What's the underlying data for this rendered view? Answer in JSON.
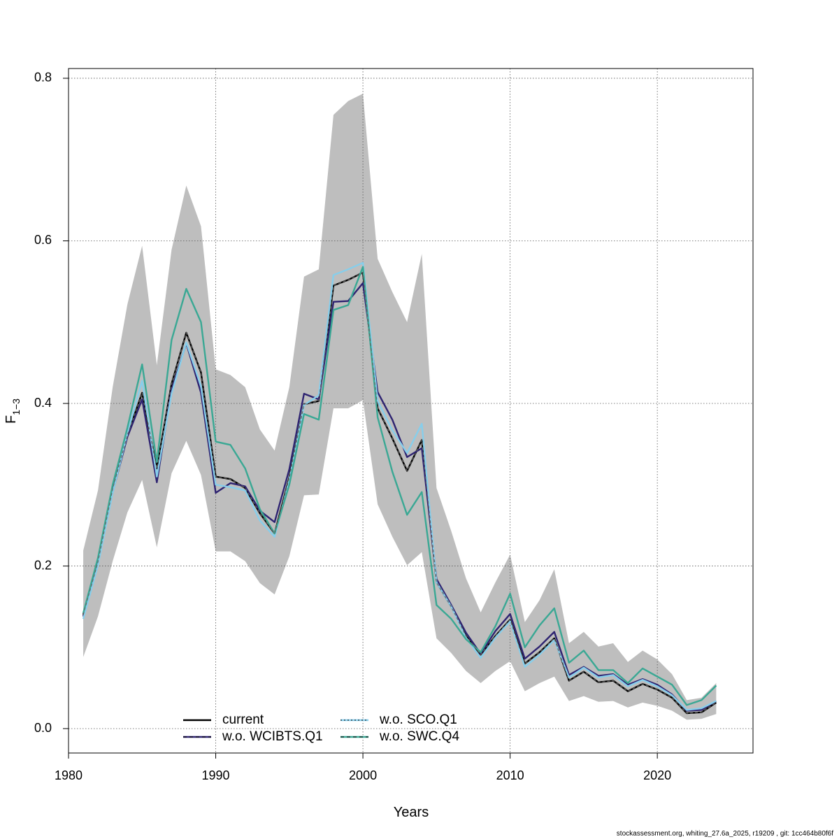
{
  "footer": "stockassessment.org, whiting_27.6a_2025, r19209 , git: 1cc464b80f6f",
  "chart_data": {
    "type": "line",
    "title": "",
    "xlabel": "Years",
    "ylabel": "F",
    "ylabel_subscript": "1−3",
    "xlim": [
      1980,
      2026.5
    ],
    "ylim": [
      -0.03,
      0.812
    ],
    "grid": true,
    "legend_position": "bottom-center",
    "x_ticks": [
      1980,
      1990,
      2000,
      2010,
      2020
    ],
    "x_tick_labels": [
      "1980",
      "1990",
      "2000",
      "2010",
      "2020"
    ],
    "y_ticks": [
      0.0,
      0.2,
      0.4,
      0.6,
      0.8
    ],
    "y_tick_labels": [
      "0.0",
      "0.2",
      "0.4",
      "0.6",
      "0.8"
    ],
    "x": [
      1981,
      1982,
      1983,
      1984,
      1985,
      1986,
      1987,
      1988,
      1989,
      1990,
      1991,
      1992,
      1993,
      1994,
      1995,
      1996,
      1997,
      1998,
      1999,
      2000,
      2001,
      2002,
      2003,
      2004,
      2005,
      2006,
      2007,
      2008,
      2009,
      2010,
      2011,
      2012,
      2013,
      2014,
      2015,
      2016,
      2017,
      2018,
      2019,
      2020,
      2021,
      2022,
      2023,
      2024
    ],
    "band": {
      "name": "confidence band",
      "color": "#bebebe",
      "upper": [
        0.219,
        0.293,
        0.42,
        0.522,
        0.594,
        0.447,
        0.589,
        0.668,
        0.618,
        0.442,
        0.435,
        0.42,
        0.368,
        0.342,
        0.42,
        0.556,
        0.565,
        0.755,
        0.772,
        0.781,
        0.578,
        0.537,
        0.5,
        0.584,
        0.296,
        0.243,
        0.185,
        0.143,
        0.18,
        0.214,
        0.131,
        0.158,
        0.196,
        0.105,
        0.119,
        0.101,
        0.105,
        0.082,
        0.096,
        0.085,
        0.067,
        0.035,
        0.038,
        0.056
      ],
      "lower": [
        0.088,
        0.138,
        0.206,
        0.266,
        0.306,
        0.223,
        0.314,
        0.354,
        0.312,
        0.218,
        0.218,
        0.206,
        0.179,
        0.165,
        0.212,
        0.287,
        0.288,
        0.394,
        0.394,
        0.404,
        0.276,
        0.236,
        0.201,
        0.217,
        0.111,
        0.093,
        0.071,
        0.056,
        0.071,
        0.083,
        0.046,
        0.056,
        0.064,
        0.034,
        0.04,
        0.033,
        0.034,
        0.026,
        0.032,
        0.028,
        0.022,
        0.011,
        0.012,
        0.018
      ]
    },
    "series": [
      {
        "name": "current",
        "color": "#000000",
        "dash": "solid",
        "values": [
          0.14,
          0.205,
          0.295,
          0.361,
          0.413,
          0.32,
          0.424,
          0.487,
          0.438,
          0.31,
          0.307,
          0.296,
          0.265,
          0.24,
          0.309,
          0.399,
          0.403,
          0.545,
          0.552,
          0.561,
          0.394,
          0.357,
          0.317,
          0.355,
          0.18,
          0.15,
          0.114,
          0.091,
          0.114,
          0.134,
          0.08,
          0.094,
          0.111,
          0.059,
          0.07,
          0.057,
          0.059,
          0.046,
          0.055,
          0.048,
          0.038,
          0.019,
          0.02,
          0.032
        ]
      },
      {
        "name": "w.o. WCIBTS.Q1",
        "color": "#2e2371",
        "dash": "dashed",
        "values": [
          0.138,
          0.203,
          0.291,
          0.359,
          0.405,
          0.303,
          0.417,
          0.474,
          0.413,
          0.29,
          0.302,
          0.298,
          0.268,
          0.254,
          0.319,
          0.412,
          0.405,
          0.525,
          0.526,
          0.548,
          0.414,
          0.38,
          0.334,
          0.345,
          0.184,
          0.152,
          0.118,
          0.092,
          0.12,
          0.141,
          0.086,
          0.101,
          0.119,
          0.066,
          0.076,
          0.065,
          0.067,
          0.054,
          0.061,
          0.054,
          0.042,
          0.022,
          0.023,
          0.034
        ]
      },
      {
        "name": "w.o. SCO.Q1",
        "color": "#87ceeb",
        "dash": "dotted",
        "values": [
          0.135,
          0.201,
          0.29,
          0.363,
          0.428,
          0.31,
          0.412,
          0.475,
          0.421,
          0.3,
          0.297,
          0.293,
          0.256,
          0.236,
          0.306,
          0.398,
          0.41,
          0.558,
          0.565,
          0.573,
          0.403,
          0.367,
          0.339,
          0.375,
          0.18,
          0.15,
          0.112,
          0.087,
          0.112,
          0.132,
          0.076,
          0.091,
          0.109,
          0.063,
          0.075,
          0.063,
          0.066,
          0.052,
          0.06,
          0.052,
          0.041,
          0.023,
          0.025,
          0.034
        ]
      },
      {
        "name": "w.o. SWC.Q4",
        "color": "#3aa894",
        "dash": "dashed",
        "values": [
          0.142,
          0.21,
          0.3,
          0.37,
          0.448,
          0.328,
          0.478,
          0.541,
          0.5,
          0.353,
          0.349,
          0.32,
          0.27,
          0.24,
          0.3,
          0.387,
          0.38,
          0.515,
          0.521,
          0.568,
          0.383,
          0.316,
          0.263,
          0.291,
          0.152,
          0.135,
          0.11,
          0.094,
          0.126,
          0.166,
          0.1,
          0.127,
          0.148,
          0.081,
          0.096,
          0.072,
          0.072,
          0.056,
          0.074,
          0.064,
          0.054,
          0.029,
          0.035,
          0.053
        ]
      }
    ]
  }
}
